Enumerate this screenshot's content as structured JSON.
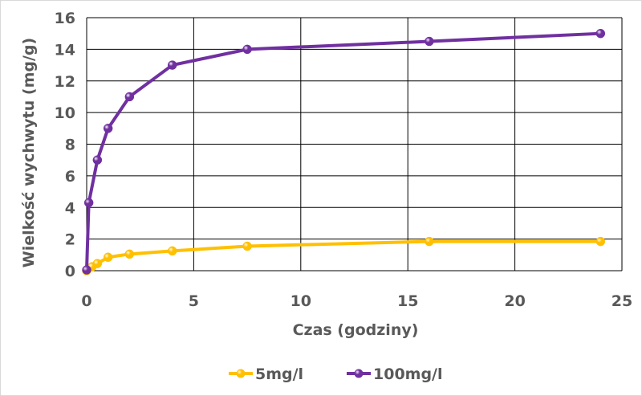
{
  "chart_data": {
    "type": "scatter",
    "title": "",
    "xlabel": "Czas (godziny)",
    "ylabel": "Wielkość wychwytu (mg/g)",
    "xlim": [
      0,
      25
    ],
    "ylim": [
      0,
      16
    ],
    "xticks": [
      0,
      5,
      10,
      15,
      20,
      25
    ],
    "yticks": [
      0,
      2,
      4,
      6,
      8,
      10,
      12,
      14,
      16
    ],
    "grid": true,
    "legend_position": "bottom",
    "series": [
      {
        "name": "5mg/l",
        "color": "#FFC000",
        "x": [
          0,
          0.25,
          0.5,
          1,
          2,
          4,
          7.5,
          16,
          24
        ],
        "y": [
          0,
          0.25,
          0.45,
          0.85,
          1.05,
          1.25,
          1.55,
          1.85,
          1.85
        ]
      },
      {
        "name": "100mg/l",
        "color": "#7030A0",
        "x": [
          0,
          0.1,
          0.5,
          1,
          2,
          4,
          7.5,
          16,
          24
        ],
        "y": [
          0.05,
          4.3,
          7,
          9,
          11,
          13,
          14,
          14.5,
          15
        ]
      }
    ]
  }
}
